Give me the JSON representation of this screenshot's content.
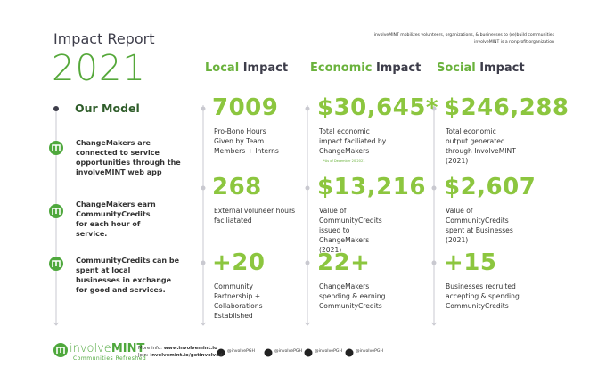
{
  "header": {
    "title": "Impact Report",
    "year": "2021",
    "tagline_lines": [
      "involveMINT mobilizes volunteers, organizations, & businesses to (re)build communities",
      "involveMINT is a nonprofit organization"
    ]
  },
  "model": {
    "title": "Our Model",
    "items": [
      [
        "ChangeMakers are",
        "connected to service",
        "opportunities through the",
        "involveMINT web app"
      ],
      [
        "ChangeMakers earn",
        "CommunityCredits",
        "for each hour of",
        "service."
      ],
      [
        "CommunityCredits can be",
        "spent at local",
        "businesses in exchange",
        "for good and services."
      ]
    ]
  },
  "columns": [
    {
      "accent": "Local",
      "rest": "Impact",
      "stats": [
        {
          "value": "7009",
          "lines": [
            "Pro-Bono Hours",
            "Given by Team",
            "Members + Interns"
          ]
        },
        {
          "value": "268",
          "lines": [
            "External voluneer hours",
            "faciliatated"
          ]
        },
        {
          "value": "+20",
          "lines": [
            "Community",
            "Partnership +",
            "Collaborations",
            "Established"
          ]
        }
      ]
    },
    {
      "accent": "Economic",
      "rest": "Impact",
      "stats": [
        {
          "value": "$30,645*",
          "lines": [
            "Total economic",
            "impact faciliated by",
            "ChangeMakers"
          ],
          "note": "*As of December 20 2021"
        },
        {
          "value": "$13,216",
          "lines": [
            "Value of",
            "CommunityCredits",
            "issued to",
            "ChangeMakers",
            "(2021)"
          ]
        },
        {
          "value": "22+",
          "lines": [
            "ChangeMakers",
            "spending & earning",
            "CommunityCredits"
          ]
        }
      ]
    },
    {
      "accent": "Social",
      "rest": "Impact",
      "stats": [
        {
          "value": "$246,288",
          "lines": [
            "Total economic",
            "output generated",
            "through InvolveMINT",
            "(2021)"
          ]
        },
        {
          "value": "$2,607",
          "lines": [
            "Value of",
            "CommunityCredits",
            "spent at Businesses",
            "(2021)"
          ]
        },
        {
          "value": "+15",
          "lines": [
            "Businesses recruited",
            "accepting & spending",
            "CommunityCredits"
          ]
        }
      ]
    }
  ],
  "footer": {
    "brand_left": "involve",
    "brand_right": "MINT",
    "slogan": "Communities Refreshed",
    "info": [
      {
        "label": "More info:",
        "value": "www.involvemint.io"
      },
      {
        "label": "Join:",
        "value": "involvemint.io/getinvolved"
      }
    ],
    "socials": [
      "@involvePGH",
      "@involvePGH",
      "@involvePGH",
      "@involvePGH"
    ]
  }
}
